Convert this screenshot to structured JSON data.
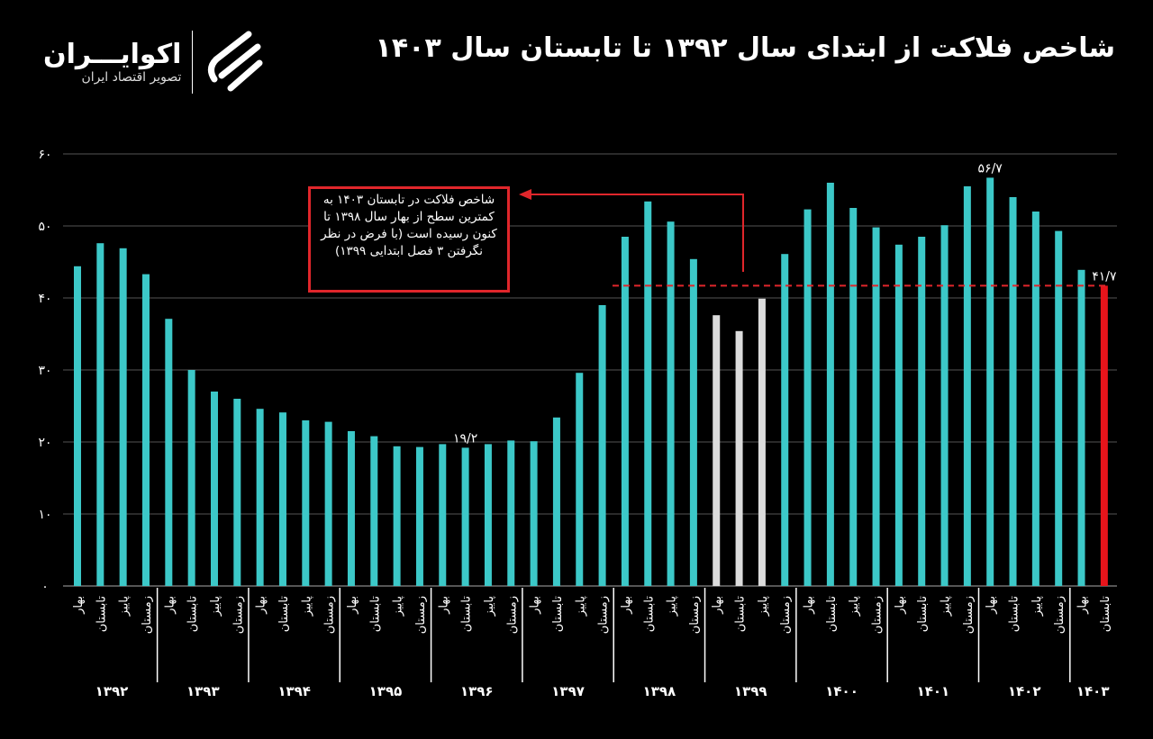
{
  "header": {
    "title": "شاخص فلاکت از ابتدای سال ۱۳۹۲ تا تابستان سال ۱۴۰۳"
  },
  "logo": {
    "name": "اکوایـــران",
    "tagline": "تصویر اقتصاد ایران"
  },
  "chart_data": {
    "type": "bar",
    "title": "شاخص فلاکت از ابتدای سال ۱۳۹۲ تا تابستان سال ۱۴۰۳",
    "ylim": [
      0,
      60
    ],
    "yticks": [
      0,
      10,
      20,
      30,
      40,
      50,
      60
    ],
    "ytick_labels": [
      "۰",
      "۱۰",
      "۲۰",
      "۳۰",
      "۴۰",
      "۵۰",
      "۶۰"
    ],
    "grid": true,
    "seasons": [
      "بهار",
      "تابستان",
      "پاییز",
      "زمستان"
    ],
    "years": [
      "۱۳۹۲",
      "۱۳۹۳",
      "۱۳۹۴",
      "۱۳۹۵",
      "۱۳۹۶",
      "۱۳۹۷",
      "۱۳۹۸",
      "۱۳۹۹",
      "۱۴۰۰",
      "۱۴۰۱",
      "۱۴۰۲",
      "۱۴۰۳"
    ],
    "values": [
      44.4,
      47.6,
      46.9,
      43.3,
      37.1,
      30.0,
      27.0,
      26.0,
      24.6,
      24.1,
      23.0,
      22.8,
      21.5,
      20.8,
      19.4,
      19.3,
      19.7,
      19.2,
      19.7,
      20.2,
      20.1,
      23.4,
      29.6,
      39.0,
      48.5,
      53.4,
      50.6,
      45.4,
      37.6,
      35.4,
      39.9,
      46.1,
      52.3,
      56.0,
      52.5,
      49.8,
      47.4,
      48.5,
      50.1,
      55.5,
      56.7,
      54.0,
      52.0,
      49.3,
      43.9,
      41.7
    ],
    "data_labels": [
      {
        "index": 17,
        "text": "۱۹/۲"
      },
      {
        "index": 40,
        "text": "۵۶/۷"
      },
      {
        "index": 45,
        "text": "۴۱/۷"
      }
    ],
    "colors": {
      "default": "#3cc8c8",
      "excluded": "#dcdcdc",
      "current": "#e8141b",
      "reference_line": "#e0262b"
    },
    "excluded_indices": [
      28,
      29,
      30
    ],
    "current_index": 45,
    "reference_line": 41.7,
    "annotation": "شاخص فلاکت در تابستان ۱۴۰۳ به کمترین سطح از بهار سال ۱۳۹۸ تا کنون رسیده است (با فرض در نظر نگرفتن ۳ فصل ابتدایی ۱۳۹۹)"
  }
}
